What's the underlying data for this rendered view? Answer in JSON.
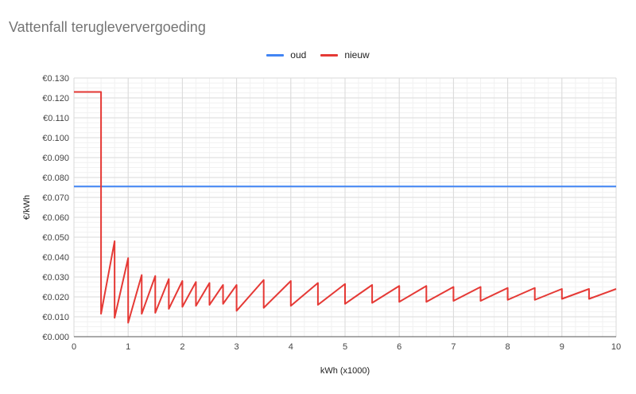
{
  "chart_data": {
    "type": "line",
    "title": "Vattenfall terugleververgoeding",
    "xlabel": "kWh (x1000)",
    "ylabel": "€/kWh",
    "xlim": [
      0,
      10
    ],
    "ylim": [
      0,
      0.13
    ],
    "x_ticks": [
      "0",
      "1",
      "2",
      "3",
      "4",
      "5",
      "6",
      "7",
      "8",
      "9",
      "10"
    ],
    "y_ticks": [
      "€0.000",
      "€0.010",
      "€0.020",
      "€0.030",
      "€0.040",
      "€0.050",
      "€0.060",
      "€0.070",
      "€0.080",
      "€0.090",
      "€0.100",
      "€0.110",
      "€0.120",
      "€0.130"
    ],
    "grid": true,
    "legend_position": "top",
    "series": [
      {
        "name": "oud",
        "color": "#4285f4",
        "points": [
          [
            0,
            0.0755
          ],
          [
            10,
            0.0755
          ]
        ]
      },
      {
        "name": "nieuw",
        "color": "#e53935",
        "points": [
          [
            0,
            0.123
          ],
          [
            0.5,
            0.123
          ],
          [
            0.5,
            0.0115
          ],
          [
            0.75,
            0.048
          ],
          [
            0.75,
            0.0095
          ],
          [
            1.0,
            0.0395
          ],
          [
            1.0,
            0.007
          ],
          [
            1.25,
            0.031
          ],
          [
            1.25,
            0.0115
          ],
          [
            1.5,
            0.0305
          ],
          [
            1.5,
            0.012
          ],
          [
            1.75,
            0.029
          ],
          [
            1.75,
            0.014
          ],
          [
            2.0,
            0.028
          ],
          [
            2.0,
            0.015
          ],
          [
            2.25,
            0.0275
          ],
          [
            2.25,
            0.0155
          ],
          [
            2.5,
            0.027
          ],
          [
            2.5,
            0.016
          ],
          [
            2.75,
            0.026
          ],
          [
            2.75,
            0.0165
          ],
          [
            3.0,
            0.026
          ],
          [
            3.0,
            0.013
          ],
          [
            3.5,
            0.0285
          ],
          [
            3.5,
            0.0145
          ],
          [
            4.0,
            0.028
          ],
          [
            4.0,
            0.0155
          ],
          [
            4.5,
            0.027
          ],
          [
            4.5,
            0.016
          ],
          [
            5.0,
            0.0265
          ],
          [
            5.0,
            0.0165
          ],
          [
            5.5,
            0.026
          ],
          [
            5.5,
            0.017
          ],
          [
            6.0,
            0.0255
          ],
          [
            6.0,
            0.0175
          ],
          [
            6.5,
            0.0255
          ],
          [
            6.5,
            0.0175
          ],
          [
            7.0,
            0.025
          ],
          [
            7.0,
            0.018
          ],
          [
            7.5,
            0.025
          ],
          [
            7.5,
            0.018
          ],
          [
            8.0,
            0.0245
          ],
          [
            8.0,
            0.0185
          ],
          [
            8.5,
            0.0245
          ],
          [
            8.5,
            0.0185
          ],
          [
            9.0,
            0.024
          ],
          [
            9.0,
            0.019
          ],
          [
            9.5,
            0.024
          ],
          [
            9.5,
            0.019
          ],
          [
            10.0,
            0.024
          ]
        ]
      }
    ]
  }
}
